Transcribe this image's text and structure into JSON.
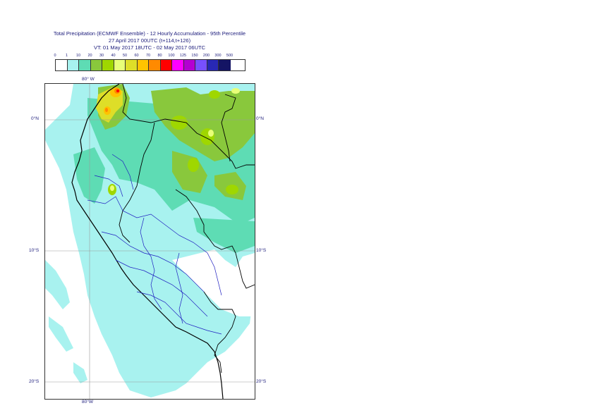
{
  "title": {
    "line1": "Total Precipitation (ECMWF Ensemble) - 12 Hourly Accumulation - 95th Percentile",
    "line2": "27 April 2017 00UTC (t+114,t+126)",
    "line3": "VT: 01 May 2017 18UTC - 02 May 2017 06UTC"
  },
  "legend": {
    "labels": [
      "0",
      "1",
      "10",
      "20",
      "30",
      "40",
      "50",
      "60",
      "70",
      "80",
      "100",
      "125",
      "150",
      "200",
      "300",
      "500"
    ],
    "colors": [
      "#ffffff",
      "#a8f2ef",
      "#5edcb4",
      "#89c83c",
      "#9fd700",
      "#e8ff78",
      "#dede28",
      "#ffc300",
      "#ff8a00",
      "#ff0000",
      "#ff00ff",
      "#b400d2",
      "#7850ff",
      "#2828b4",
      "#141464"
    ]
  },
  "axes": {
    "lon_top": "80° W",
    "lon_bottom": "80°W",
    "lat_left": [
      "0°N",
      "10°S",
      "20°S"
    ],
    "lat_right": [
      "0°N",
      "10°S",
      "20°S"
    ]
  }
}
